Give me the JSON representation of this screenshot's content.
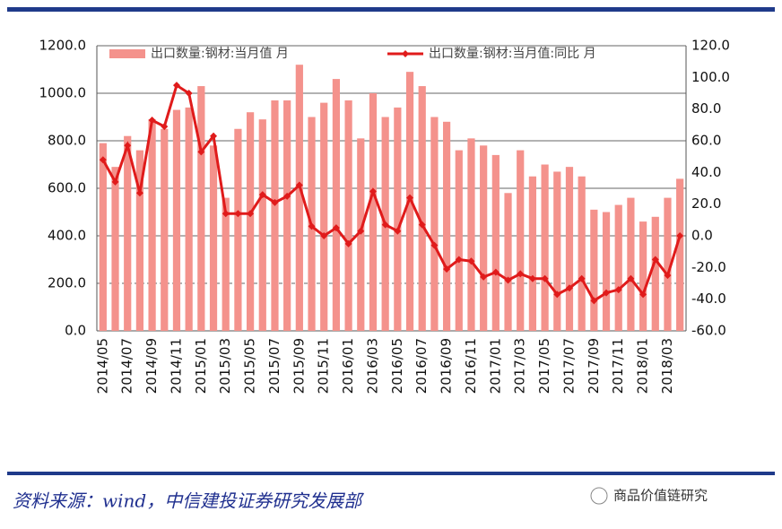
{
  "chart_data": {
    "type": "bar_line",
    "categories": [
      "2014/05",
      null,
      "2014/07",
      null,
      "2014/09",
      null,
      "2014/11",
      null,
      "2015/01",
      null,
      "2015/03",
      null,
      "2015/05",
      null,
      "2015/07",
      null,
      "2015/09",
      null,
      "2015/11",
      null,
      "2016/01",
      null,
      "2016/03",
      null,
      "2016/05",
      null,
      "2016/07",
      null,
      "2016/09",
      null,
      "2016/11",
      null,
      "2017/01",
      null,
      "2017/03",
      null,
      "2017/05",
      null,
      "2017/07",
      null,
      "2017/09",
      null,
      "2017/11",
      null,
      "2018/01",
      null,
      "2018/03",
      null
    ],
    "series": [
      {
        "name": "出口数量:钢材:当月值 月",
        "color": "#f4928c",
        "kind": "bar",
        "values": [
          790,
          690,
          820,
          760,
          890,
          850,
          930,
          940,
          1030,
          780,
          560,
          850,
          920,
          890,
          970,
          970,
          1120,
          900,
          960,
          1060,
          970,
          810,
          1000,
          900,
          940,
          1090,
          1030,
          900,
          880,
          760,
          810,
          780,
          740,
          580,
          760,
          650,
          700,
          670,
          690,
          650,
          510,
          500,
          530,
          560,
          460,
          480,
          560,
          640
        ]
      },
      {
        "name": "出口数量:钢材:当月值:同比 月",
        "color": "#e01b1b",
        "kind": "line",
        "axis": "y2",
        "values": [
          48,
          34,
          57,
          27,
          73,
          69,
          95,
          90,
          53,
          63,
          14,
          14,
          14,
          26,
          21,
          25,
          32,
          6,
          0,
          5,
          -5,
          3,
          28,
          7,
          3,
          24,
          7,
          -6,
          -21,
          -15,
          -16,
          -26,
          -23,
          -28,
          -24,
          -27,
          -27,
          -37,
          -33,
          -27,
          -41,
          -36,
          -34,
          -27,
          -37,
          -15,
          -25,
          0
        ]
      }
    ],
    "ylim": [
      0,
      1200
    ],
    "yticks": [
      {
        "value": 0,
        "label": "0.0"
      },
      {
        "value": 200,
        "label": "200.0"
      },
      {
        "value": 400,
        "label": "400.0"
      },
      {
        "value": 600,
        "label": "600.0"
      },
      {
        "value": 800,
        "label": "800.0"
      },
      {
        "value": 1000,
        "label": "1000.0"
      },
      {
        "value": 1200,
        "label": "1200.0"
      }
    ],
    "y2lim": [
      -60,
      120
    ],
    "y2ticks": [
      {
        "value": -60,
        "label": "-60.0"
      },
      {
        "value": -40,
        "label": "-40.0"
      },
      {
        "value": -20,
        "label": "-20.0"
      },
      {
        "value": 0,
        "label": "0.0"
      },
      {
        "value": 20,
        "label": "20.0"
      },
      {
        "value": 40,
        "label": "40.0"
      },
      {
        "value": 60,
        "label": "60.0"
      },
      {
        "value": 80,
        "label": "80.0"
      },
      {
        "value": 100,
        "label": "100.0"
      },
      {
        "value": 120,
        "label": "120.0"
      }
    ],
    "grid": true,
    "source": "资料来源：wind，中信建投证券研究发展部",
    "watermark": "商品价值链研究"
  }
}
